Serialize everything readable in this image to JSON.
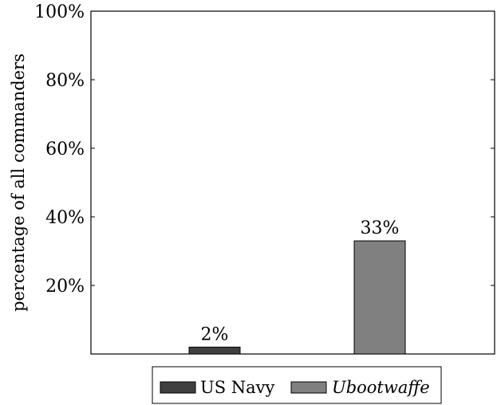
{
  "chart_data": {
    "type": "bar",
    "title": "",
    "xlabel": "",
    "ylabel": "percentage of all commanders",
    "ylim": [
      0,
      100
    ],
    "yticks": [
      20,
      40,
      60,
      80,
      100
    ],
    "ytick_labels": [
      "20%",
      "40%",
      "60%",
      "80%",
      "100%"
    ],
    "grid": false,
    "legend_position": "bottom",
    "series": [
      {
        "name": "US Navy",
        "values": [
          2
        ],
        "label": "2%",
        "color": "#404040"
      },
      {
        "name": "Ubootwaffe",
        "values": [
          33
        ],
        "label": "33%",
        "color": "#808080"
      }
    ]
  }
}
